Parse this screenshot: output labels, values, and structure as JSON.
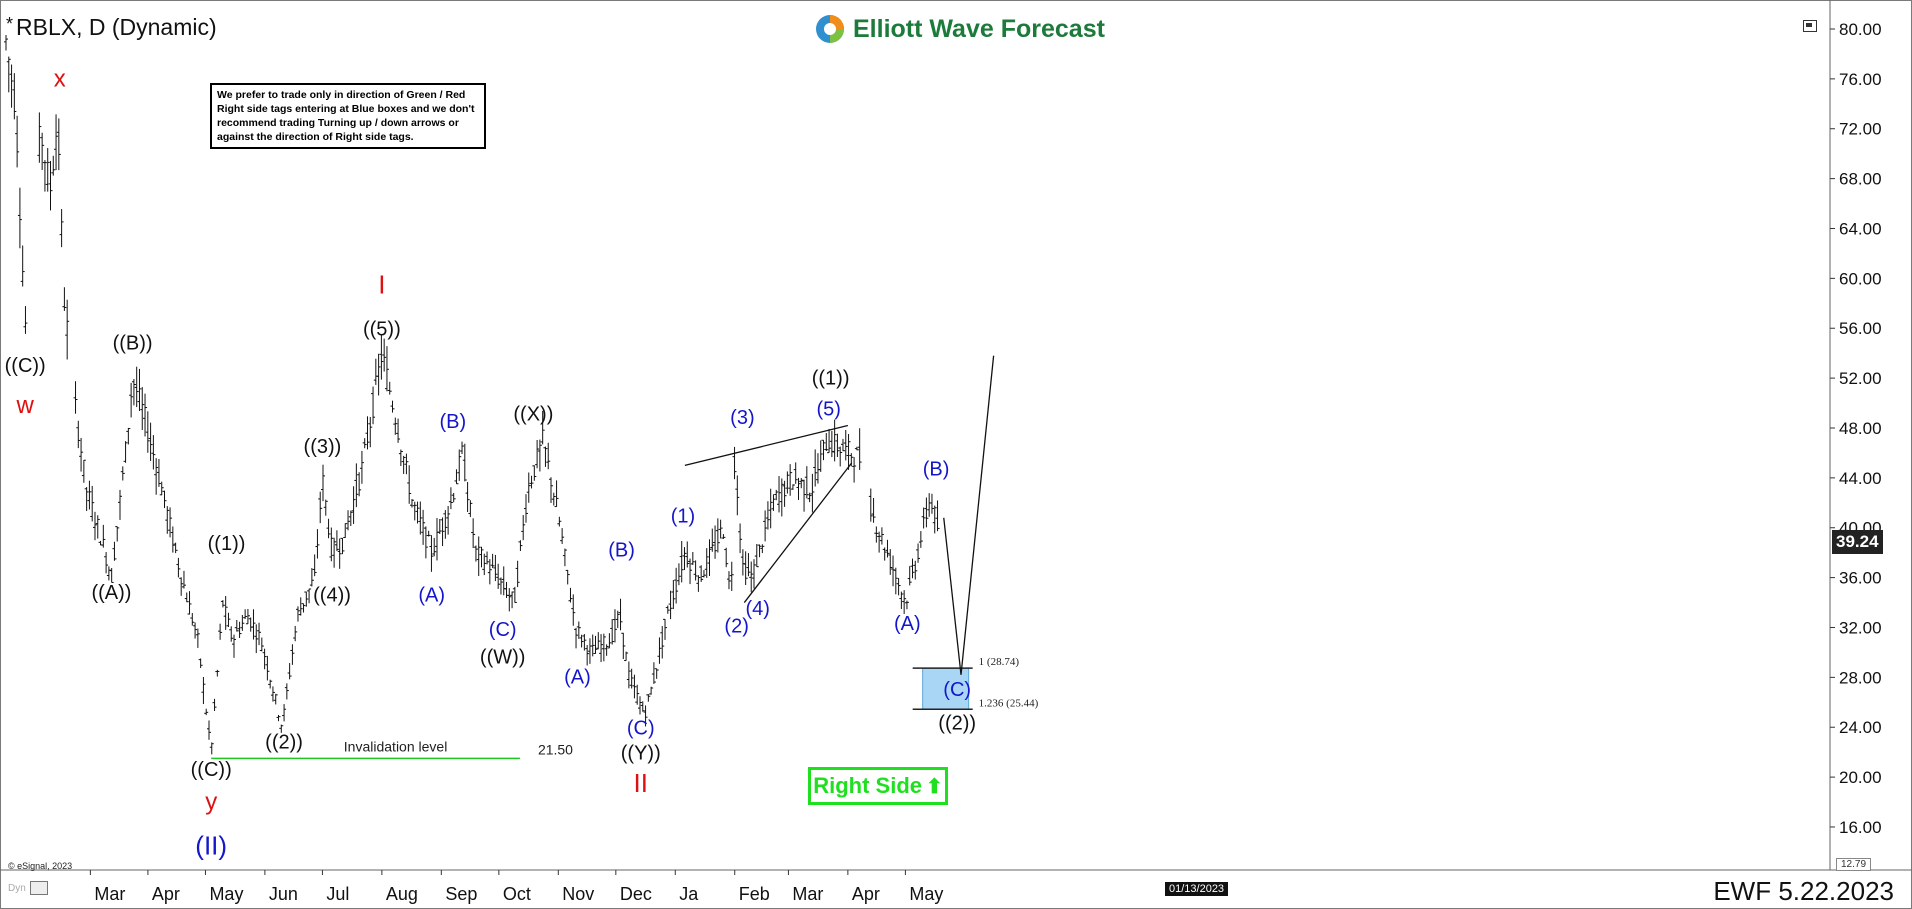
{
  "header": {
    "symbol_line": "RBLX, D (Dynamic)",
    "star": "*"
  },
  "logo": {
    "text": "Elliott Wave Forecast"
  },
  "note": {
    "text": "We prefer to trade only in direction of Green / Red Right side tags entering at Blue boxes and we don't recommend trading Turning up / down arrows or against the direction of Right side tags."
  },
  "right_side_tag": {
    "label": "Right Side",
    "arrow": "up-arrow"
  },
  "footer": {
    "text": "EWF 5.22.2023",
    "copyright": "© eSignal, 2023",
    "dyn": "Dyn"
  },
  "current_price": "39.24",
  "low_price": "12.79",
  "crosshair_date": "01/13/2023",
  "invalidation": {
    "label": "Invalidation level",
    "value_label": "21.50"
  },
  "blue_box": {
    "level1_label": "1 (28.74)",
    "level2_label": "1.236 (25.44)"
  },
  "colors": {
    "bars": "#111111",
    "black_labels": "#111111",
    "blue_labels": "#1515cc",
    "red_labels": "#dd1111",
    "invalidation": "#1fc81f",
    "right_side": "#1fe01f",
    "blue_box": "#a9d6f5",
    "logo_text": "#1c7a3a"
  },
  "chart_data": {
    "type": "ohlc",
    "y_ticks": [
      "80.00",
      "76.00",
      "72.00",
      "68.00",
      "64.00",
      "60.00",
      "56.00",
      "52.00",
      "48.00",
      "44.00",
      "40.00",
      "36.00",
      "32.00",
      "28.00",
      "24.00",
      "20.00",
      "16.00"
    ],
    "ylim": [
      12.79,
      81.5
    ],
    "x_ticks": [
      {
        "label": "Mar",
        "d": 44
      },
      {
        "label": "Apr",
        "d": 74
      },
      {
        "label": "May",
        "d": 104
      },
      {
        "label": "Jun",
        "d": 135
      },
      {
        "label": "Jul",
        "d": 165
      },
      {
        "label": "Aug",
        "d": 196
      },
      {
        "label": "Sep",
        "d": 227
      },
      {
        "label": "Oct",
        "d": 257
      },
      {
        "label": "Nov",
        "d": 288
      },
      {
        "label": "Dec",
        "d": 318
      },
      {
        "label": "Ja",
        "d": 349
      },
      {
        "label": "Feb",
        "d": 380
      },
      {
        "label": "Mar",
        "d": 408
      },
      {
        "label": "Apr",
        "d": 439
      },
      {
        "label": "May",
        "d": 469
      }
    ],
    "price_path": [
      [
        0,
        79
      ],
      [
        5,
        74
      ],
      [
        10,
        56
      ],
      [
        18,
        72
      ],
      [
        23,
        67
      ],
      [
        27,
        73
      ],
      [
        30,
        59
      ],
      [
        35,
        51
      ],
      [
        42,
        43
      ],
      [
        50,
        39
      ],
      [
        55,
        36
      ],
      [
        63,
        47
      ],
      [
        66,
        52
      ],
      [
        72,
        49
      ],
      [
        80,
        44
      ],
      [
        90,
        37
      ],
      [
        100,
        31
      ],
      [
        107,
        22
      ],
      [
        113,
        34
      ],
      [
        118,
        31
      ],
      [
        126,
        33
      ],
      [
        133,
        31
      ],
      [
        144,
        24
      ],
      [
        152,
        33
      ],
      [
        161,
        36
      ],
      [
        165,
        44
      ],
      [
        170,
        38
      ],
      [
        176,
        39
      ],
      [
        186,
        45
      ],
      [
        196,
        54
      ],
      [
        203,
        49
      ],
      [
        212,
        42
      ],
      [
        222,
        38
      ],
      [
        232,
        42
      ],
      [
        238,
        46
      ],
      [
        245,
        38
      ],
      [
        252,
        37
      ],
      [
        265,
        34
      ],
      [
        272,
        43
      ],
      [
        280,
        47
      ],
      [
        288,
        41
      ],
      [
        297,
        32
      ],
      [
        305,
        30
      ],
      [
        315,
        31
      ],
      [
        320,
        33
      ],
      [
        325,
        28
      ],
      [
        333,
        25
      ],
      [
        338,
        28
      ],
      [
        345,
        33
      ],
      [
        354,
        38
      ],
      [
        362,
        36
      ],
      [
        374,
        40
      ],
      [
        378,
        34
      ],
      [
        380,
        46
      ],
      [
        384,
        37
      ],
      [
        389,
        36
      ],
      [
        400,
        42
      ],
      [
        410,
        44
      ],
      [
        420,
        43
      ],
      [
        428,
        47
      ],
      [
        440,
        46
      ],
      [
        446,
        45.5
      ],
      [
        452,
        41
      ],
      [
        462,
        37
      ],
      [
        469,
        34
      ],
      [
        474,
        37
      ],
      [
        482,
        42.5
      ],
      [
        487,
        39.2
      ]
    ],
    "projection": [
      [
        489,
        40.8
      ],
      [
        498,
        28.2
      ],
      [
        515,
        53.8
      ]
    ],
    "labels": [
      {
        "text": "((C))",
        "d": 10,
        "y": 52.5,
        "color": "black",
        "size": 20
      },
      {
        "text": "w",
        "d": 10,
        "y": 49.2,
        "color": "red",
        "size": 24
      },
      {
        "text": "x",
        "d": 28,
        "y": 75.4,
        "color": "red",
        "size": 24
      },
      {
        "text": "((A))",
        "d": 55,
        "y": 34.3,
        "color": "black",
        "size": 20
      },
      {
        "text": "((B))",
        "d": 66,
        "y": 54.3,
        "color": "black",
        "size": 20
      },
      {
        "text": "((1))",
        "d": 115,
        "y": 38.2,
        "color": "black",
        "size": 20
      },
      {
        "text": "((C))",
        "d": 107,
        "y": 20.1,
        "color": "black",
        "size": 20
      },
      {
        "text": "y",
        "d": 107,
        "y": 17.4,
        "color": "red",
        "size": 24
      },
      {
        "text": "(II)",
        "d": 107,
        "y": 13.8,
        "color": "blue",
        "size": 26
      },
      {
        "text": "((2))",
        "d": 145,
        "y": 22.3,
        "color": "black",
        "size": 20
      },
      {
        "text": "((3))",
        "d": 165,
        "y": 46.0,
        "color": "black",
        "size": 20
      },
      {
        "text": "((4))",
        "d": 170,
        "y": 34.1,
        "color": "black",
        "size": 20
      },
      {
        "text": "I",
        "d": 196,
        "y": 58.8,
        "color": "red",
        "size": 26
      },
      {
        "text": "((5))",
        "d": 196,
        "y": 55.4,
        "color": "black",
        "size": 20
      },
      {
        "text": "(A)",
        "d": 222,
        "y": 34.1,
        "color": "blue",
        "size": 20
      },
      {
        "text": "(B)",
        "d": 233,
        "y": 48.0,
        "color": "blue",
        "size": 20
      },
      {
        "text": "(C)",
        "d": 259,
        "y": 31.3,
        "color": "blue",
        "size": 20
      },
      {
        "text": "((W))",
        "d": 259,
        "y": 29.1,
        "color": "black",
        "size": 20
      },
      {
        "text": "((X))",
        "d": 275,
        "y": 48.6,
        "color": "black",
        "size": 20
      },
      {
        "text": "(A)",
        "d": 298,
        "y": 27.5,
        "color": "blue",
        "size": 20
      },
      {
        "text": "(B)",
        "d": 321,
        "y": 37.7,
        "color": "blue",
        "size": 20
      },
      {
        "text": "(C)",
        "d": 331,
        "y": 23.4,
        "color": "blue",
        "size": 20
      },
      {
        "text": "((Y))",
        "d": 331,
        "y": 21.4,
        "color": "black",
        "size": 20
      },
      {
        "text": "II",
        "d": 331,
        "y": 18.8,
        "color": "red",
        "size": 26
      },
      {
        "text": "(1)",
        "d": 353,
        "y": 40.4,
        "color": "blue",
        "size": 20
      },
      {
        "text": "(2)",
        "d": 381,
        "y": 31.6,
        "color": "blue",
        "size": 20
      },
      {
        "text": "(3)",
        "d": 384,
        "y": 48.3,
        "color": "blue",
        "size": 20
      },
      {
        "text": "(4)",
        "d": 392,
        "y": 33.0,
        "color": "blue",
        "size": 20
      },
      {
        "text": "(5)",
        "d": 429,
        "y": 49.0,
        "color": "blue",
        "size": 20
      },
      {
        "text": "((1))",
        "d": 430,
        "y": 51.5,
        "color": "black",
        "size": 20
      },
      {
        "text": "(A)",
        "d": 470,
        "y": 31.8,
        "color": "blue",
        "size": 20
      },
      {
        "text": "(B)",
        "d": 485,
        "y": 44.2,
        "color": "blue",
        "size": 20
      },
      {
        "text": "(C)",
        "d": 496,
        "y": 26.5,
        "color": "blue",
        "size": 20
      },
      {
        "text": "((2))",
        "d": 496,
        "y": 23.8,
        "color": "black",
        "size": 20
      }
    ],
    "trendlines": [
      {
        "from": [
          354,
          45.0
        ],
        "to": [
          439,
          48.2
        ]
      },
      {
        "from": [
          385,
          34.0
        ],
        "to": [
          441,
          45.2
        ]
      }
    ],
    "invalidation_line": {
      "from_d": 107,
      "to_d": 268,
      "y": 21.5
    },
    "blue_box": {
      "from_d": 478,
      "to_d": 502,
      "top": 28.74,
      "bottom": 25.44
    }
  }
}
